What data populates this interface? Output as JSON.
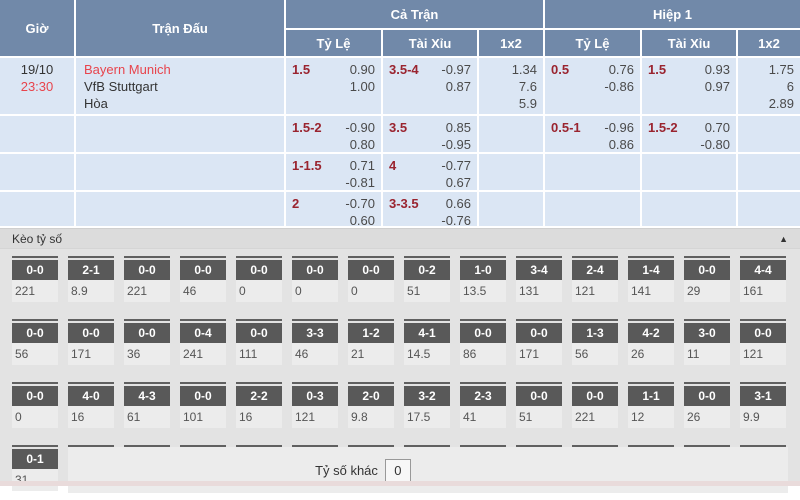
{
  "main_table": {
    "headers": {
      "time": "Giờ",
      "match": "Trận Đấu",
      "full_match": "Cả Trận",
      "first_half": "Hiệp 1",
      "handicap": "Tỷ Lệ",
      "over_under": "Tài Xỉu",
      "one_x_two": "1x2"
    },
    "match": {
      "date": "19/10",
      "time": "23:30",
      "home": "Bayern Munich",
      "away": "VfB Stuttgart",
      "draw": "Hòa"
    },
    "rows": [
      {
        "ft_hdp": {
          "line": "1.5",
          "odds": [
            "0.90",
            "1.00"
          ]
        },
        "ft_ou": {
          "line": "3.5-4",
          "odds": [
            "-0.97",
            "0.87"
          ]
        },
        "ft_1x2": [
          "1.34",
          "7.6",
          "5.9"
        ],
        "h1_hdp": {
          "line": "0.5",
          "odds": [
            "0.76",
            "-0.86"
          ]
        },
        "h1_ou": {
          "line": "1.5",
          "odds": [
            "0.93",
            "0.97"
          ]
        },
        "h1_1x2": [
          "1.75",
          "6",
          "2.89"
        ]
      },
      {
        "ft_hdp": {
          "line": "1.5-2",
          "odds": [
            "-0.90",
            "0.80"
          ]
        },
        "ft_ou": {
          "line": "3.5",
          "odds": [
            "0.85",
            "-0.95"
          ]
        },
        "ft_1x2": [],
        "h1_hdp": {
          "line": "0.5-1",
          "odds": [
            "-0.96",
            "0.86"
          ]
        },
        "h1_ou": {
          "line": "1.5-2",
          "odds": [
            "0.70",
            "-0.80"
          ]
        },
        "h1_1x2": []
      },
      {
        "ft_hdp": {
          "line": "1-1.5",
          "odds": [
            "0.71",
            "-0.81"
          ]
        },
        "ft_ou": {
          "line": "4",
          "odds": [
            "-0.77",
            "0.67"
          ]
        },
        "ft_1x2": [],
        "h1_hdp": null,
        "h1_ou": null,
        "h1_1x2": []
      },
      {
        "ft_hdp": {
          "line": "2",
          "odds": [
            "-0.70",
            "0.60"
          ]
        },
        "ft_ou": {
          "line": "3-3.5",
          "odds": [
            "0.66",
            "-0.76"
          ]
        },
        "ft_1x2": [],
        "h1_hdp": null,
        "h1_ou": null,
        "h1_1x2": []
      }
    ]
  },
  "score_section": {
    "title": "Kèo tỷ số",
    "collapse_icon": "▲",
    "other_score_label": "Tỷ số khác",
    "other_score_value": "0",
    "rows": [
      [
        {
          "score": "0-0",
          "odds": "221"
        },
        {
          "score": "2-1",
          "odds": "8.9"
        },
        {
          "score": "0-0",
          "odds": "221"
        },
        {
          "score": "0-0",
          "odds": "46"
        },
        {
          "score": "0-0",
          "odds": "0"
        },
        {
          "score": "0-0",
          "odds": "0"
        },
        {
          "score": "0-0",
          "odds": "0"
        },
        {
          "score": "0-2",
          "odds": "51"
        },
        {
          "score": "1-0",
          "odds": "13.5"
        },
        {
          "score": "3-4",
          "odds": "131"
        },
        {
          "score": "2-4",
          "odds": "121"
        },
        {
          "score": "1-4",
          "odds": "141"
        },
        {
          "score": "0-0",
          "odds": "29"
        },
        {
          "score": "4-4",
          "odds": "161"
        }
      ],
      [
        {
          "score": "0-0",
          "odds": "56"
        },
        {
          "score": "0-0",
          "odds": "171"
        },
        {
          "score": "0-0",
          "odds": "36"
        },
        {
          "score": "0-4",
          "odds": "241"
        },
        {
          "score": "0-0",
          "odds": "111"
        },
        {
          "score": "3-3",
          "odds": "46"
        },
        {
          "score": "1-2",
          "odds": "21"
        },
        {
          "score": "4-1",
          "odds": "14.5"
        },
        {
          "score": "0-0",
          "odds": "86"
        },
        {
          "score": "0-0",
          "odds": "171"
        },
        {
          "score": "1-3",
          "odds": "56"
        },
        {
          "score": "4-2",
          "odds": "26"
        },
        {
          "score": "3-0",
          "odds": "11"
        },
        {
          "score": "0-0",
          "odds": "121"
        }
      ],
      [
        {
          "score": "0-0",
          "odds": "0"
        },
        {
          "score": "4-0",
          "odds": "16"
        },
        {
          "score": "4-3",
          "odds": "61"
        },
        {
          "score": "0-0",
          "odds": "101"
        },
        {
          "score": "2-2",
          "odds": "16"
        },
        {
          "score": "0-3",
          "odds": "121"
        },
        {
          "score": "2-0",
          "odds": "9.8"
        },
        {
          "score": "3-2",
          "odds": "17.5"
        },
        {
          "score": "2-3",
          "odds": "41"
        },
        {
          "score": "0-0",
          "odds": "51"
        },
        {
          "score": "0-0",
          "odds": "221"
        },
        {
          "score": "1-1",
          "odds": "12"
        },
        {
          "score": "0-0",
          "odds": "26"
        },
        {
          "score": "3-1",
          "odds": "9.9"
        }
      ],
      [
        {
          "score": "0-1",
          "odds": "31"
        }
      ]
    ]
  },
  "colors": {
    "header_blue": "#7189a9",
    "row_blue": "#dbe6f4",
    "team_red": "#e8444c",
    "line_maroon": "#9a242f",
    "badge_gray": "#595959",
    "section_gray": "#e3e3e3"
  }
}
